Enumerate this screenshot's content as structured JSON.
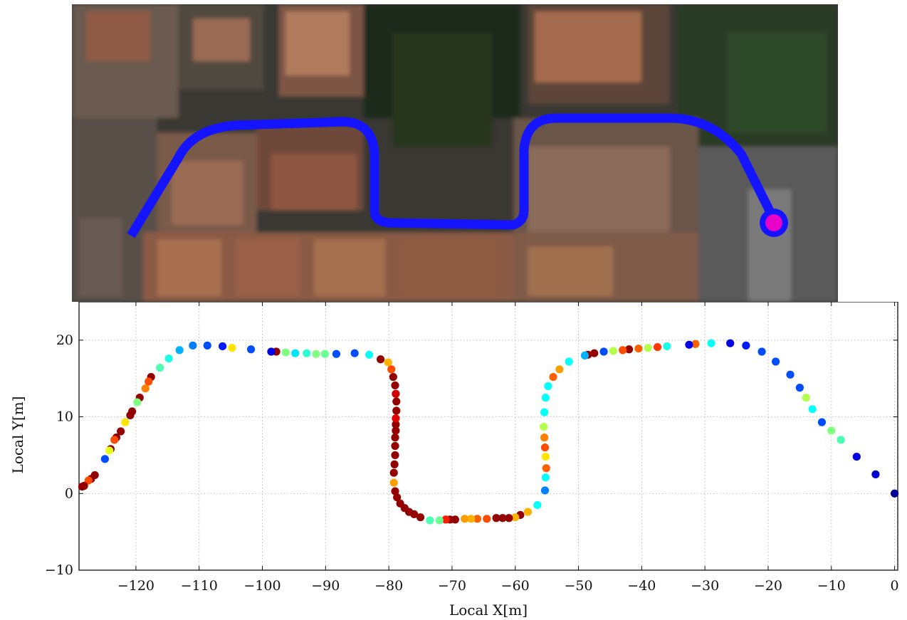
{
  "aerial_image": {
    "description_icon": "satellite-map",
    "path_color": "#1414ff",
    "start_marker_color": "#e600c8"
  },
  "chart_data": {
    "type": "scatter",
    "xlabel": "Local X[m]",
    "ylabel": "Local Y[m]",
    "xlim": [
      -129,
      0.5
    ],
    "ylim": [
      -10,
      25
    ],
    "xticks": [
      -120,
      -110,
      -100,
      -90,
      -80,
      -70,
      -60,
      -50,
      -40,
      -30,
      -20,
      -10,
      0
    ],
    "yticks": [
      -10,
      0,
      10,
      20
    ],
    "grid": true,
    "colormap": "jet",
    "points": [
      [
        0,
        0,
        0.02
      ],
      [
        -3,
        2.5,
        0.08
      ],
      [
        -6,
        4.8,
        0.1
      ],
      [
        -8.5,
        7,
        0.45
      ],
      [
        -10,
        8.2,
        0.5
      ],
      [
        -11.5,
        9.3,
        0.2
      ],
      [
        -13,
        11,
        0.38
      ],
      [
        -14,
        12.5,
        0.55
      ],
      [
        -15,
        13.8,
        0.2
      ],
      [
        -16.5,
        15.5,
        0.2
      ],
      [
        -18.8,
        17.2,
        0.2
      ],
      [
        -21,
        18.5,
        0.2
      ],
      [
        -23.5,
        19.3,
        0.15
      ],
      [
        -26,
        19.6,
        0.1
      ],
      [
        -29,
        19.6,
        0.38
      ],
      [
        -31.5,
        19.5,
        0.78
      ],
      [
        -32.5,
        19.4,
        0.1
      ],
      [
        -36,
        19.2,
        0.4
      ],
      [
        -37.5,
        19.1,
        0.82
      ],
      [
        -39,
        19,
        0.55
      ],
      [
        -40.5,
        18.9,
        0.78
      ],
      [
        -42,
        18.8,
        0.98
      ],
      [
        -43,
        18.7,
        0.8
      ],
      [
        -44.5,
        18.6,
        0.55
      ],
      [
        -46,
        18.5,
        0.2
      ],
      [
        -47.5,
        18.3,
        0.98
      ],
      [
        -48.5,
        18.1,
        0.98
      ],
      [
        -49,
        18,
        0.3
      ],
      [
        -51.5,
        17.2,
        0.38
      ],
      [
        -53,
        16.2,
        0.72
      ],
      [
        -54,
        15.2,
        0.78
      ],
      [
        -54.8,
        14,
        0.38
      ],
      [
        -55.2,
        12.5,
        0.38
      ],
      [
        -55.4,
        10.6,
        0.38
      ],
      [
        -55.5,
        8.7,
        0.55
      ],
      [
        -55.4,
        7.3,
        0.75
      ],
      [
        -55.3,
        6,
        0.8
      ],
      [
        -55.2,
        4.8,
        0.65
      ],
      [
        -55.1,
        3.3,
        0.78
      ],
      [
        -55.2,
        2.1,
        0.38
      ],
      [
        -55.3,
        0.4,
        0.25
      ],
      [
        -56.5,
        -1.5,
        0.38
      ],
      [
        -58,
        -2.4,
        0.7
      ],
      [
        -59.2,
        -2.8,
        0.98
      ],
      [
        -60,
        -3.1,
        0.7
      ],
      [
        -61,
        -3.2,
        0.98
      ],
      [
        -62,
        -3.2,
        0.98
      ],
      [
        -63,
        -3.2,
        0.98
      ],
      [
        -64.5,
        -3.3,
        0.8
      ],
      [
        -66,
        -3.3,
        0.78
      ],
      [
        -67,
        -3.3,
        0.7
      ],
      [
        -68,
        -3.3,
        0.72
      ],
      [
        -69.5,
        -3.4,
        0.98
      ],
      [
        -70.3,
        -3.4,
        0.98
      ],
      [
        -71,
        -3.4,
        0.85
      ],
      [
        -72,
        -3.5,
        0.48
      ],
      [
        -73.5,
        -3.5,
        0.45
      ],
      [
        -75,
        -3.1,
        0.98
      ],
      [
        -76,
        -2.7,
        0.98
      ],
      [
        -76.8,
        -2.4,
        0.98
      ],
      [
        -77.5,
        -1.9,
        0.98
      ],
      [
        -78.2,
        -1.3,
        0.98
      ],
      [
        -78.7,
        -0.5,
        0.98
      ],
      [
        -79,
        0.3,
        0.98
      ],
      [
        -79.2,
        1.4,
        0.72
      ],
      [
        -79.2,
        2.7,
        0.98
      ],
      [
        -79.1,
        3.8,
        0.98
      ],
      [
        -79,
        5,
        0.98
      ],
      [
        -79,
        6.2,
        0.98
      ],
      [
        -79,
        7.3,
        0.98
      ],
      [
        -78.9,
        8.2,
        0.98
      ],
      [
        -78.9,
        9,
        0.98
      ],
      [
        -78.9,
        9.8,
        0.9
      ],
      [
        -78.8,
        10.8,
        0.98
      ],
      [
        -78.8,
        12,
        0.98
      ],
      [
        -78.9,
        13,
        0.92
      ],
      [
        -79,
        14.1,
        0.98
      ],
      [
        -79.3,
        15.2,
        0.98
      ],
      [
        -79.6,
        16.2,
        0.8
      ],
      [
        -80.1,
        17.1,
        0.7
      ],
      [
        -81.3,
        17.5,
        0.98
      ],
      [
        -83.1,
        18.1,
        0.38
      ],
      [
        -85.4,
        18.3,
        0.2
      ],
      [
        -88.3,
        18.2,
        0.2
      ],
      [
        -90.1,
        18.2,
        0.48
      ],
      [
        -91.5,
        18.2,
        0.5
      ],
      [
        -93,
        18.3,
        0.42
      ],
      [
        -94.8,
        18.3,
        0.35
      ],
      [
        -96.3,
        18.4,
        0.5
      ],
      [
        -97.8,
        18.5,
        0.98
      ],
      [
        -98.6,
        18.5,
        0.1
      ],
      [
        -101.8,
        18.8,
        0.2
      ],
      [
        -104.8,
        19,
        0.65
      ],
      [
        -106.3,
        19.2,
        0.15
      ],
      [
        -108.7,
        19.3,
        0.2
      ],
      [
        -111,
        19.3,
        0.25
      ],
      [
        -113.1,
        18.7,
        0.3
      ],
      [
        -114.8,
        17.6,
        0.4
      ],
      [
        -116.2,
        16.4,
        0.45
      ],
      [
        -117.6,
        15.2,
        0.98
      ],
      [
        -118,
        14.6,
        0.8
      ],
      [
        -118.5,
        13.7,
        0.75
      ],
      [
        -119.4,
        12.5,
        0.98
      ],
      [
        -119.8,
        11.9,
        0.5
      ],
      [
        -120.6,
        10.7,
        0.98
      ],
      [
        -120.9,
        10.2,
        0.98
      ],
      [
        -121.7,
        9.3,
        0.65
      ],
      [
        -122.4,
        8.1,
        0.98
      ],
      [
        -123.1,
        7.3,
        0.98
      ],
      [
        -123.4,
        7,
        0.8
      ],
      [
        -124,
        5.8,
        0.98
      ],
      [
        -124.2,
        5.6,
        0.6
      ],
      [
        -124.9,
        4.5,
        0.2
      ],
      [
        -126.5,
        2.4,
        0.98
      ],
      [
        -127.1,
        1.9,
        0.98
      ],
      [
        -127.5,
        1.7,
        0.8
      ],
      [
        -128.2,
        1,
        0.98
      ],
      [
        -128.5,
        0.9,
        0.98
      ]
    ]
  }
}
